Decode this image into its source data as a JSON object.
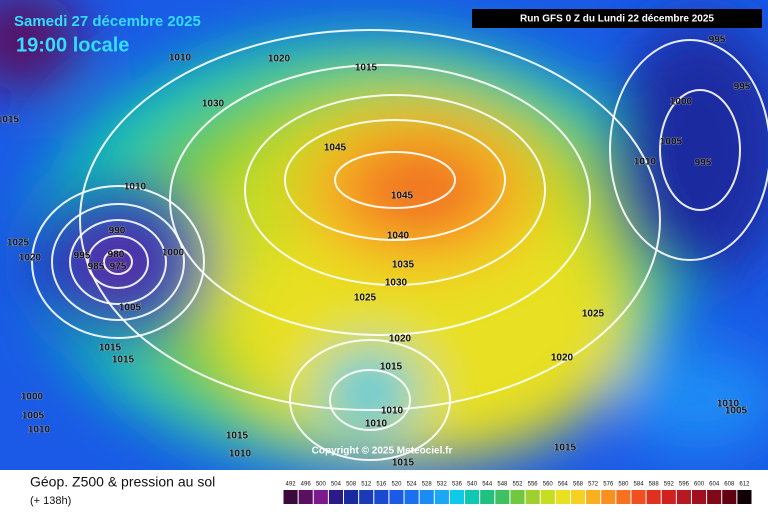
{
  "header": {
    "date": "Samedi 27 décembre 2025",
    "time": "19:00 locale",
    "run": "Run GFS 0 Z du Lundi 22 décembre 2025"
  },
  "isobar_labels": [
    "1010",
    "1020",
    "1015",
    "1030",
    "1015",
    "1045",
    "1045",
    "1010",
    "990",
    "980",
    "995",
    "985",
    "975",
    "1000",
    "1025",
    "1020",
    "1040",
    "1035",
    "1030",
    "1025",
    "1005",
    "995",
    "995",
    "1000",
    "1005",
    "995",
    "1010",
    "1025",
    "1020",
    "1020",
    "1015",
    "1015",
    "1015",
    "1000",
    "1005",
    "1010",
    "1010",
    "1010",
    "1015",
    "1010",
    "1015",
    "1015",
    "1010",
    "1005"
  ],
  "copyright": "Copyright © 2025 Meteociel.fr",
  "footer": {
    "title": "Géop. Z500 & pression au sol",
    "lead": "(+ 138h)"
  },
  "legend": {
    "labels": [
      492,
      496,
      500,
      504,
      508,
      512,
      516,
      520,
      524,
      528,
      532,
      536,
      540,
      544,
      548,
      552,
      556,
      560,
      564,
      568,
      572,
      576,
      580,
      584,
      588,
      592,
      596,
      600,
      604,
      608,
      612
    ],
    "colors": [
      "#3b0a3b",
      "#5a1060",
      "#7a1a8c",
      "#2a1a8a",
      "#1a2aa0",
      "#1a3ab8",
      "#1a4ad0",
      "#1a5ae6",
      "#1a70f0",
      "#1a8cf5",
      "#1aa8f5",
      "#10c8e8",
      "#10c8b0",
      "#20c080",
      "#40c060",
      "#70c840",
      "#a0d030",
      "#c8dc20",
      "#e8e020",
      "#f8d020",
      "#f8b020",
      "#f89020",
      "#f87020",
      "#f05020",
      "#e03020",
      "#d02020",
      "#b81820",
      "#a01020",
      "#800818",
      "#600010",
      "#100008"
    ]
  }
}
